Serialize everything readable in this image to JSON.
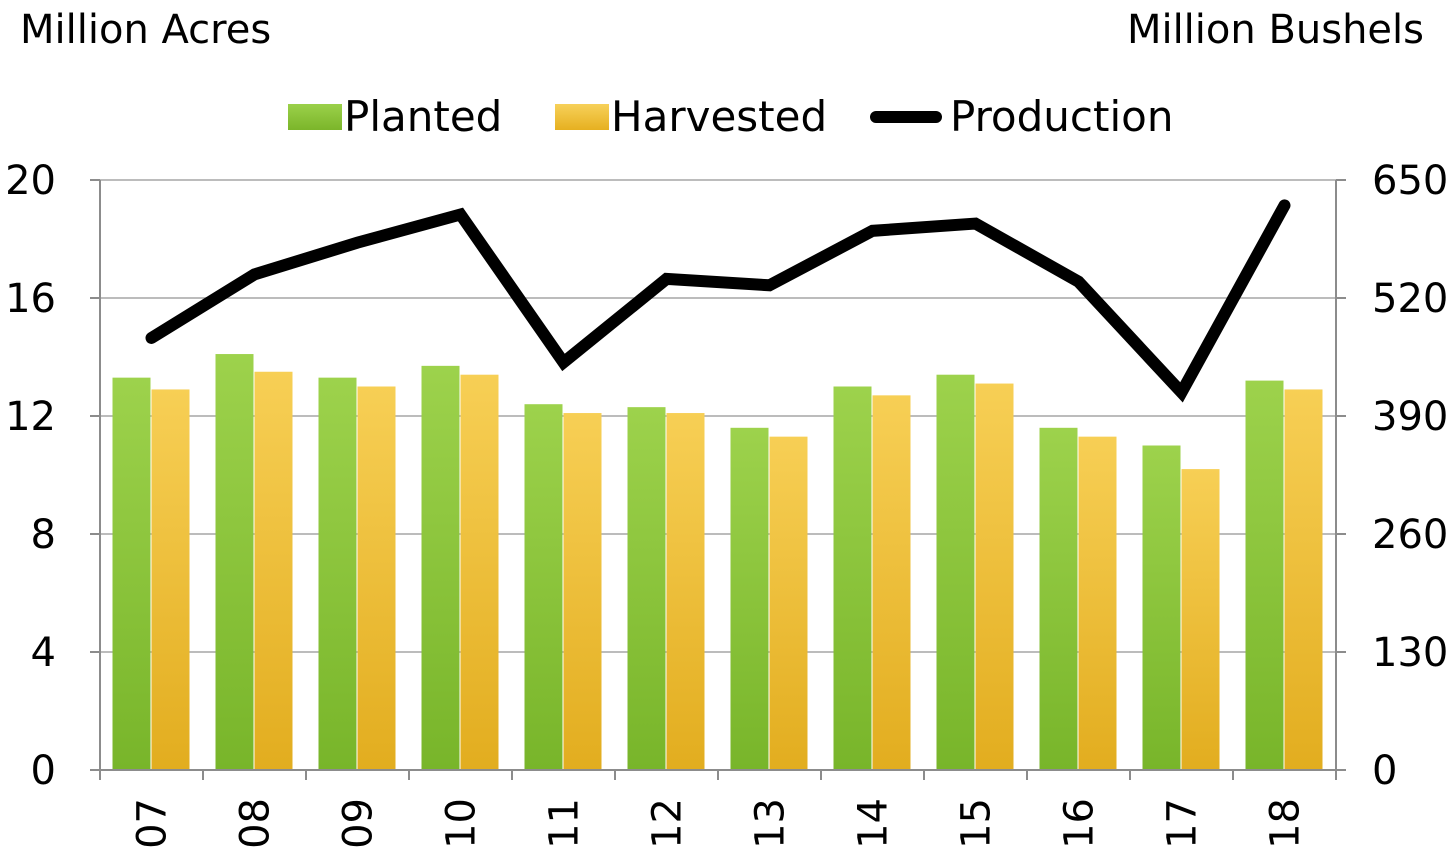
{
  "header": {
    "left_unit": "Million Acres",
    "right_unit": "Million Bushels"
  },
  "legend": {
    "items": [
      {
        "label": "Planted",
        "color": "#8dc63f",
        "kind": "bar"
      },
      {
        "label": "Harvested",
        "color": "#f3c23d",
        "kind": "bar"
      },
      {
        "label": "Production",
        "color": "#000000",
        "kind": "line"
      }
    ]
  },
  "chart_data": {
    "type": "bar",
    "categories": [
      "07",
      "08",
      "09",
      "10",
      "11",
      "12",
      "13",
      "14",
      "15",
      "16",
      "17",
      "18"
    ],
    "series": [
      {
        "name": "Planted",
        "axis": "left",
        "type": "bar",
        "color": "#8dc63f",
        "values": [
          13.3,
          14.1,
          13.3,
          13.7,
          12.4,
          12.3,
          11.6,
          13.0,
          13.4,
          11.6,
          11.0,
          13.2
        ]
      },
      {
        "name": "Harvested",
        "axis": "left",
        "type": "bar",
        "color": "#f3c23d",
        "values": [
          12.9,
          13.5,
          13.0,
          13.4,
          12.1,
          12.1,
          11.3,
          12.7,
          13.1,
          11.3,
          10.2,
          12.9
        ]
      },
      {
        "name": "Production",
        "axis": "right",
        "type": "line",
        "color": "#000000",
        "values": [
          476,
          546,
          581,
          612,
          449,
          541,
          534,
          594,
          602,
          538,
          416,
          622
        ]
      }
    ],
    "ylabel": "Million Acres",
    "y2label": "Million Bushels",
    "ylim": [
      0,
      20
    ],
    "yticks": [
      0,
      4,
      8,
      12,
      16,
      20
    ],
    "y2lim": [
      0,
      650
    ],
    "y2ticks": [
      0,
      130,
      260,
      390,
      520,
      650
    ],
    "grid": true
  }
}
